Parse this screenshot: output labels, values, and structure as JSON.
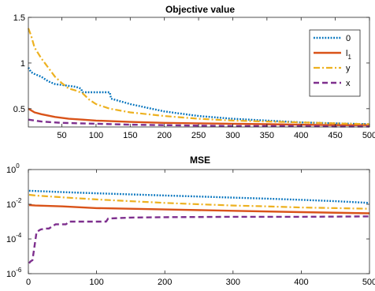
{
  "chart_data": [
    {
      "type": "line",
      "title": "Objective value",
      "xlabel": "",
      "ylabel": "",
      "xlim": [
        1,
        500
      ],
      "ylim": [
        0.3,
        1.5
      ],
      "yscale": "linear",
      "grid": false,
      "legend_position": "top-right",
      "xticks": [
        50,
        100,
        150,
        200,
        250,
        300,
        350,
        400,
        450,
        500
      ],
      "yticks": [
        {
          "value": 0.5,
          "label": "0.5"
        },
        {
          "value": 1,
          "label": "1"
        },
        {
          "value": 1.5,
          "label": "1.5"
        }
      ],
      "series": [
        {
          "name": "0",
          "color": "#0072BD",
          "style": "dotted",
          "x": [
            1,
            5,
            10,
            20,
            30,
            40,
            50,
            60,
            70,
            78,
            80,
            100,
            120,
            122,
            150,
            200,
            250,
            300,
            350,
            400,
            450,
            500
          ],
          "y": [
            0.95,
            0.9,
            0.88,
            0.85,
            0.8,
            0.77,
            0.76,
            0.75,
            0.74,
            0.72,
            0.68,
            0.68,
            0.68,
            0.61,
            0.55,
            0.47,
            0.42,
            0.39,
            0.37,
            0.35,
            0.34,
            0.33
          ]
        },
        {
          "name": "l_1",
          "color": "#D95319",
          "style": "solid",
          "x": [
            1,
            10,
            20,
            40,
            60,
            80,
            100,
            150,
            200,
            250,
            300,
            350,
            400,
            450,
            500
          ],
          "y": [
            0.5,
            0.46,
            0.44,
            0.41,
            0.39,
            0.38,
            0.37,
            0.355,
            0.345,
            0.34,
            0.335,
            0.33,
            0.325,
            0.32,
            0.32
          ]
        },
        {
          "name": "y",
          "color": "#EDB120",
          "style": "dashdot",
          "x": [
            1,
            5,
            10,
            20,
            30,
            40,
            50,
            60,
            70,
            80,
            90,
            100,
            120,
            150,
            200,
            250,
            300,
            350,
            400,
            450,
            500
          ],
          "y": [
            1.38,
            1.3,
            1.17,
            1.05,
            0.95,
            0.85,
            0.78,
            0.72,
            0.7,
            0.67,
            0.6,
            0.55,
            0.5,
            0.46,
            0.42,
            0.39,
            0.37,
            0.36,
            0.35,
            0.34,
            0.33
          ]
        },
        {
          "name": "x",
          "color": "#7E2F8E",
          "style": "dashed",
          "x": [
            1,
            20,
            50,
            100,
            150,
            200,
            250,
            300,
            350,
            400,
            450,
            500
          ],
          "y": [
            0.38,
            0.36,
            0.345,
            0.335,
            0.325,
            0.32,
            0.315,
            0.31,
            0.31,
            0.31,
            0.305,
            0.305
          ]
        }
      ],
      "legend": [
        {
          "label": "0",
          "sub": ""
        },
        {
          "label": "l",
          "sub": "1"
        },
        {
          "label": "y",
          "sub": ""
        },
        {
          "label": "x",
          "sub": ""
        }
      ]
    },
    {
      "type": "line",
      "title": "MSE",
      "xlabel": "",
      "ylabel": "",
      "xlim": [
        0,
        500
      ],
      "ylim": [
        1e-06,
        1
      ],
      "yscale": "log",
      "grid": false,
      "xticks": [
        0,
        100,
        200,
        300,
        400,
        500
      ],
      "yticks": [
        {
          "value": 1e-06,
          "base": "10",
          "exp": "-6"
        },
        {
          "value": 0.0001,
          "base": "10",
          "exp": "-4"
        },
        {
          "value": 0.01,
          "base": "10",
          "exp": "-2"
        },
        {
          "value": 1,
          "base": "10",
          "exp": "0"
        }
      ],
      "series": [
        {
          "name": "0",
          "color": "#0072BD",
          "style": "dotted",
          "x": [
            1,
            10,
            50,
            100,
            150,
            200,
            250,
            300,
            350,
            400,
            450,
            500
          ],
          "y": [
            0.06,
            0.058,
            0.05,
            0.043,
            0.037,
            0.032,
            0.028,
            0.024,
            0.021,
            0.018,
            0.015,
            0.012
          ]
        },
        {
          "name": "l_1",
          "color": "#D95319",
          "style": "solid",
          "x": [
            1,
            10,
            50,
            100,
            200,
            300,
            400,
            500
          ],
          "y": [
            0.009,
            0.0085,
            0.0075,
            0.006,
            0.005,
            0.0042,
            0.0035,
            0.003
          ]
        },
        {
          "name": "y",
          "color": "#EDB120",
          "style": "dashdot",
          "x": [
            1,
            10,
            50,
            100,
            150,
            200,
            250,
            300,
            350,
            400,
            450,
            500
          ],
          "y": [
            0.035,
            0.032,
            0.025,
            0.019,
            0.015,
            0.012,
            0.01,
            0.0085,
            0.0075,
            0.0065,
            0.006,
            0.0055
          ]
        },
        {
          "name": "x",
          "color": "#7E2F8E",
          "style": "dashed",
          "x": [
            1,
            3,
            6,
            8,
            12,
            18,
            25,
            30,
            40,
            55,
            60,
            80,
            100,
            114,
            117,
            150,
            200,
            300,
            400,
            500
          ],
          "y": [
            4e-06,
            5e-06,
            6e-06,
            2e-05,
            0.00025,
            0.00035,
            0.0004,
            0.0004,
            0.0007,
            0.0007,
            0.001,
            0.001,
            0.001,
            0.001,
            0.0015,
            0.0017,
            0.0018,
            0.0019,
            0.0019,
            0.002
          ]
        }
      ]
    }
  ]
}
